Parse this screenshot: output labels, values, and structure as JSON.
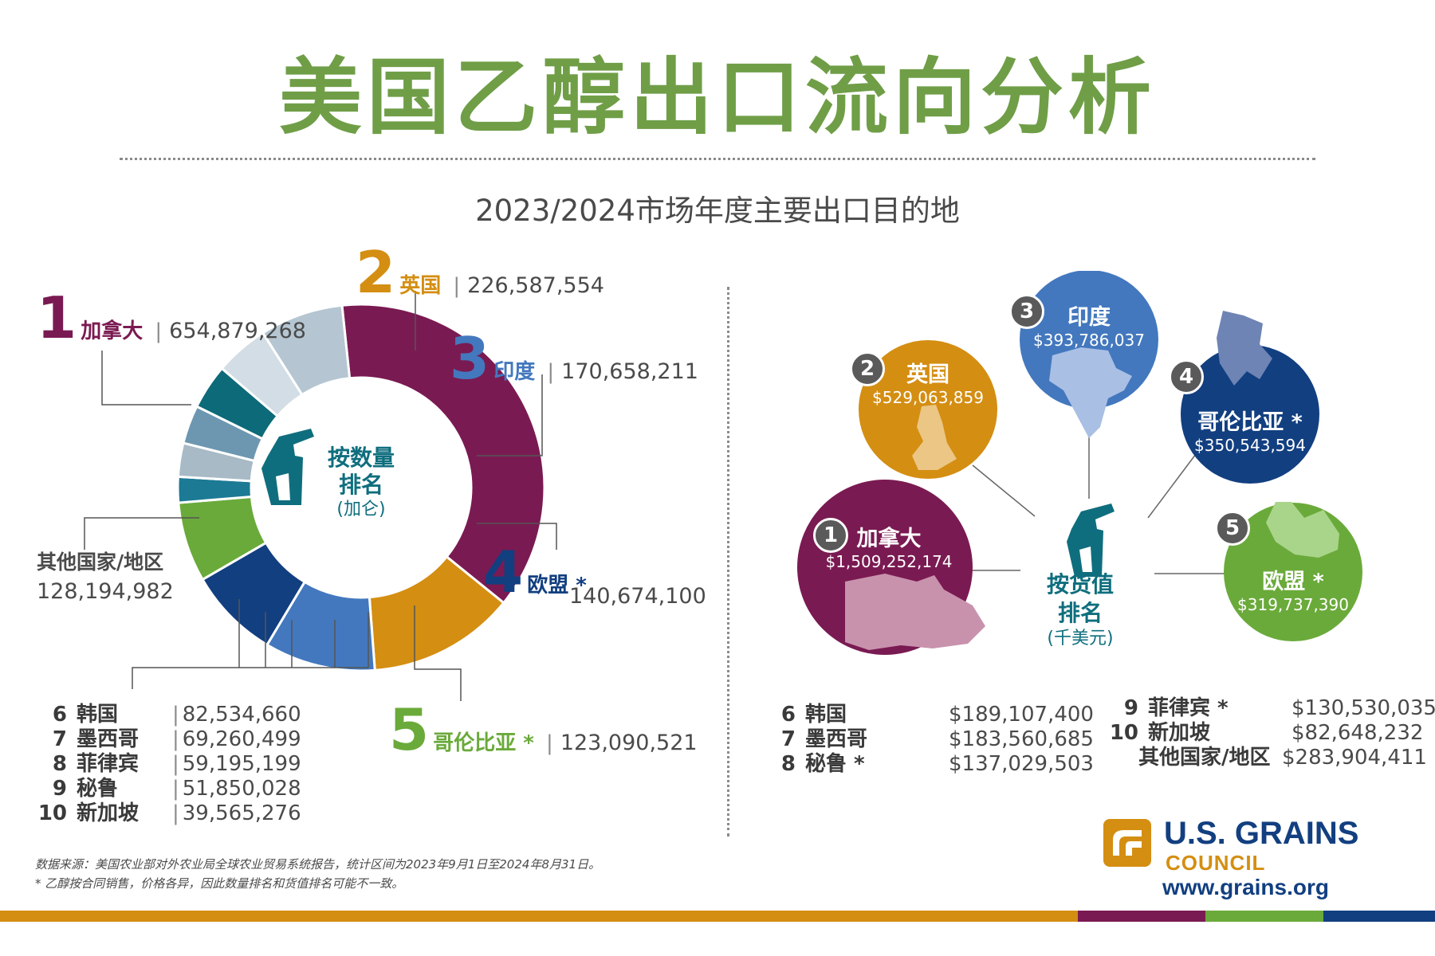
{
  "title": "美国乙醇出口流向分析",
  "subtitle": "2023/2024市场年度主要出口目的地",
  "colors": {
    "title_green": "#6f9e47",
    "canada": "#7a1a52",
    "uk": "#d48e12",
    "india": "#4378be",
    "eu": "#123f80",
    "colombia": "#6aaa3a",
    "others": "#b5c6d2",
    "teal": "#0f6e7e"
  },
  "volume": {
    "center_title": "按数量\n排名",
    "center_unit": "(加仑)",
    "others_label": "其他国家/地区",
    "others_value": "128,194,982",
    "top5": [
      {
        "rank": "1",
        "name": "加拿大",
        "value": "654,879,268"
      },
      {
        "rank": "2",
        "name": "英国",
        "value": "226,587,554"
      },
      {
        "rank": "3",
        "name": "印度",
        "value": "170,658,211"
      },
      {
        "rank": "4",
        "name": "欧盟 *",
        "value": "140,674,100"
      },
      {
        "rank": "5",
        "name": "哥伦比亚 *",
        "value": "123,090,521"
      }
    ],
    "rest": [
      {
        "rank": "6",
        "name": "韩国",
        "value": "82,534,660"
      },
      {
        "rank": "7",
        "name": "墨西哥",
        "value": "69,260,499"
      },
      {
        "rank": "8",
        "name": "菲律宾",
        "value": "59,195,199"
      },
      {
        "rank": "9",
        "name": "秘鲁",
        "value": "51,850,028"
      },
      {
        "rank": "10",
        "name": "新加坡",
        "value": "39,565,276"
      }
    ]
  },
  "value_rank": {
    "center_title": "按货值\n排名",
    "center_unit": "(千美元)",
    "top5": [
      {
        "rank": "1",
        "name": "加拿大",
        "value": "$1,509,252,174"
      },
      {
        "rank": "2",
        "name": "英国",
        "value": "$529,063,859"
      },
      {
        "rank": "3",
        "name": "印度",
        "value": "$393,786,037"
      },
      {
        "rank": "4",
        "name": "哥伦比亚 *",
        "value": "$350,543,594"
      },
      {
        "rank": "5",
        "name": "欧盟 *",
        "value": "$319,737,390"
      }
    ],
    "rest_left": [
      {
        "rank": "6",
        "name": "韩国",
        "value": "$189,107,400"
      },
      {
        "rank": "7",
        "name": "墨西哥",
        "value": "$183,560,685"
      },
      {
        "rank": "8",
        "name": "秘鲁 *",
        "value": "$137,029,503"
      }
    ],
    "rest_right": [
      {
        "rank": "9",
        "name": "菲律宾 *",
        "value": "$130,530,035"
      },
      {
        "rank": "10",
        "name": "新加坡",
        "value": "$82,648,232"
      },
      {
        "rank": "",
        "name": "其他国家/地区",
        "value": "$283,904,411"
      }
    ]
  },
  "footnotes": [
    "数据来源：美国农业部对外农业局全球农业贸易系统报告，统计区间为2023年9月1日至2024年8月31日。",
    "* 乙醇按合同销售，价格各异，因此数量排名和货值排名可能不一致。"
  ],
  "logo": {
    "line1": "U.S. GRAINS",
    "line2": "COUNCIL",
    "url": "www.grains.org"
  },
  "chart_data": [
    {
      "type": "pie",
      "title": "按数量排名",
      "unit": "(加仑)",
      "categories": [
        "加拿大",
        "英国",
        "印度",
        "欧盟 *",
        "哥伦比亚 *",
        "新加坡",
        "秘鲁",
        "菲律宾",
        "墨西哥",
        "韩国",
        "其他国家/地区"
      ],
      "values": [
        654879268,
        226587554,
        170658211,
        140674100,
        123090521,
        39565276,
        51850028,
        59195199,
        69260499,
        82534660,
        128194982
      ],
      "colors": [
        "#7a1a52",
        "#d48e12",
        "#4378be",
        "#123f80",
        "#6aaa3a",
        "#1c7a94",
        "#a7bac6",
        "#6d97b0",
        "#0d6a78",
        "#d3dde5",
        "#b5c6d2"
      ]
    },
    {
      "type": "bubble",
      "title": "按货值排名",
      "unit": "(千美元)",
      "categories": [
        "加拿大",
        "英国",
        "印度",
        "哥伦比亚 *",
        "欧盟 *"
      ],
      "values": [
        1509252174,
        529063859,
        393786037,
        350543594,
        319737390
      ]
    }
  ]
}
